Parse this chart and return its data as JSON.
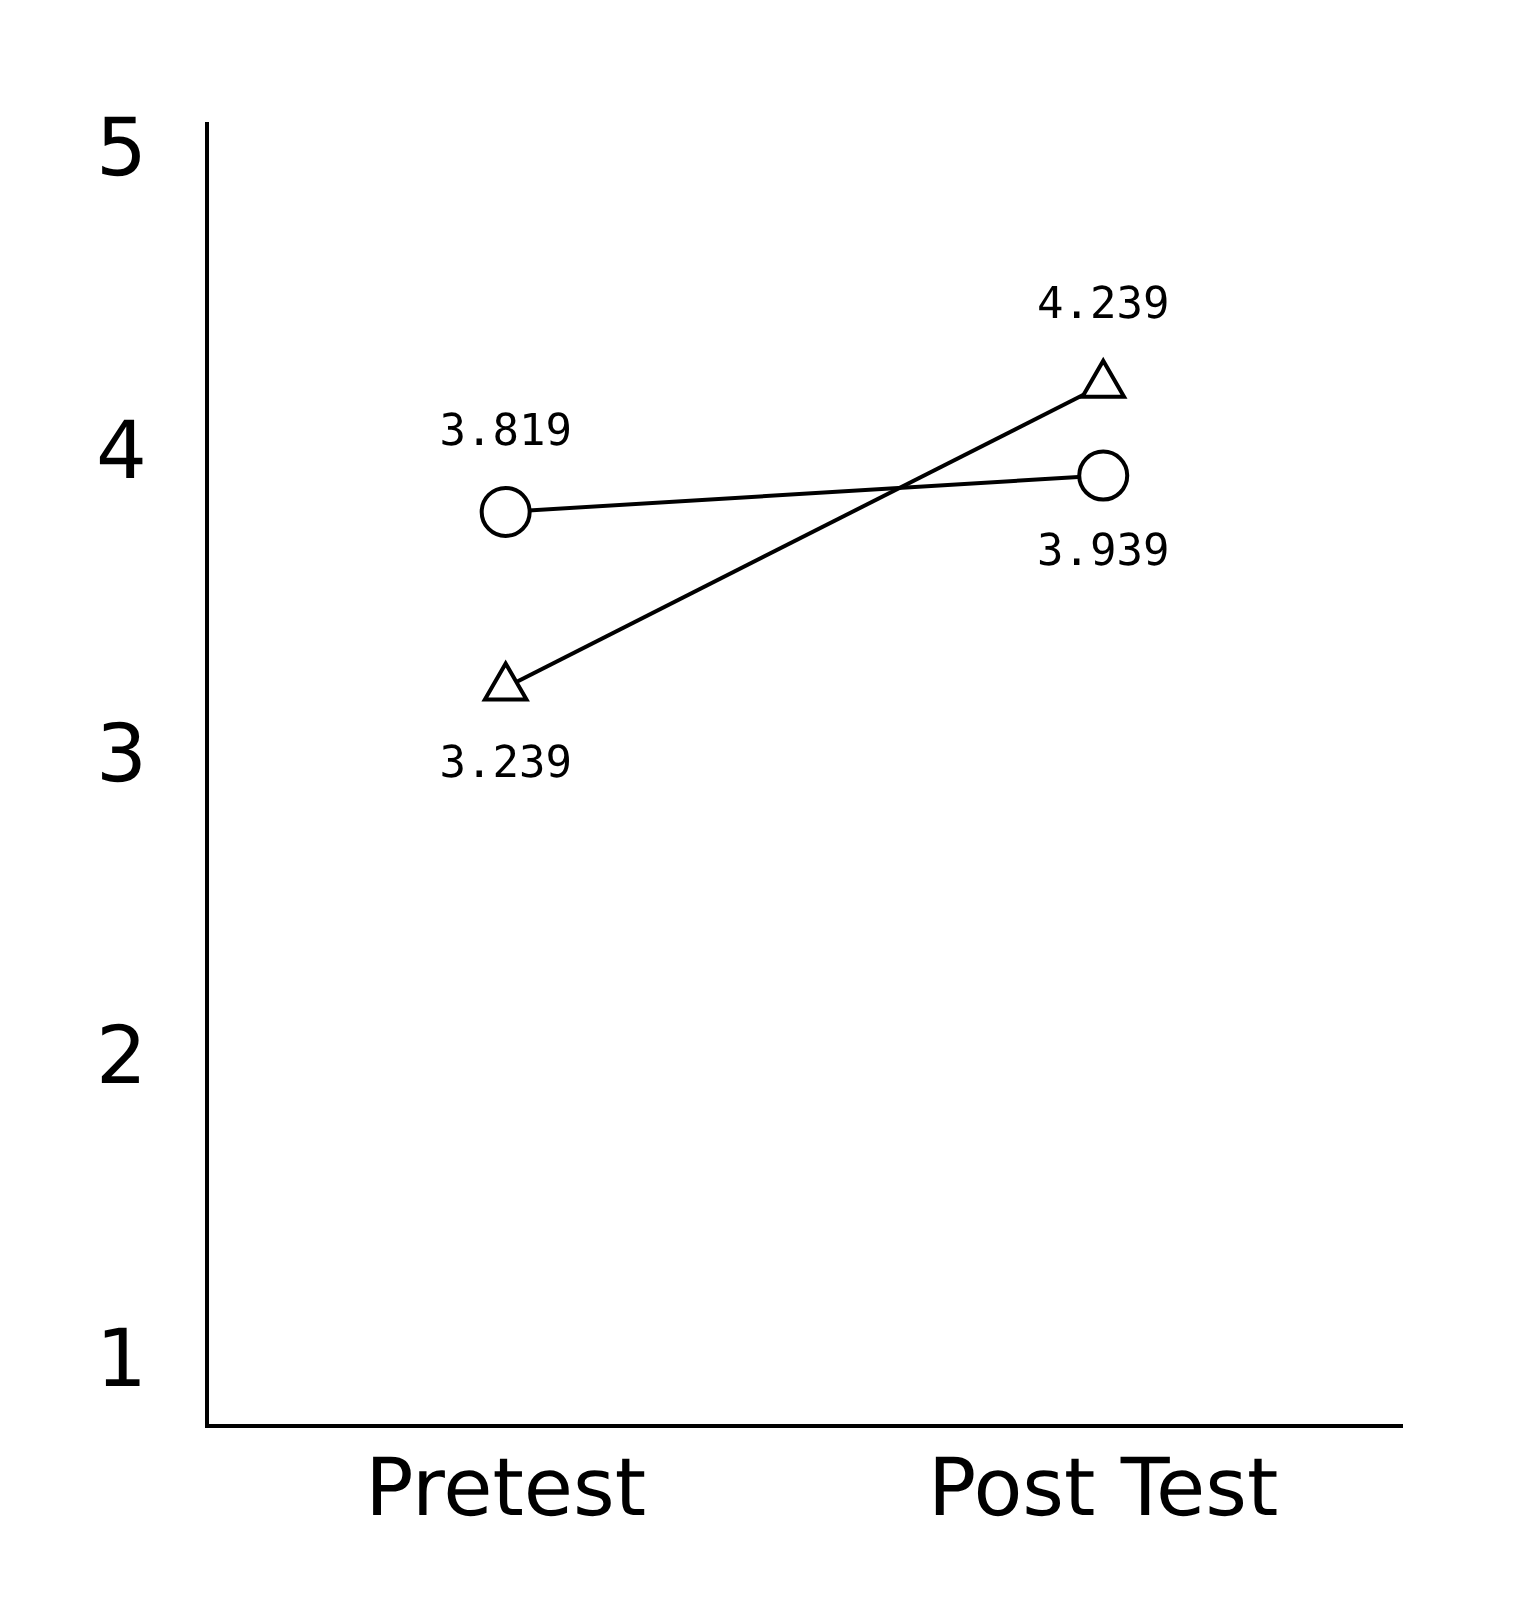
{
  "chart_data": {
    "type": "line",
    "categories": [
      "Pretest",
      "Post Test"
    ],
    "series": [
      {
        "color": "#000000",
        "marker": "circle",
        "values": [
          3.819,
          3.939
        ]
      },
      {
        "color": "#000000",
        "marker": "triangle",
        "values": [
          3.239,
          4.239
        ]
      }
    ],
    "ylim": [
      0.8,
      5.1
    ],
    "yticks": [
      1,
      2,
      3,
      4,
      5
    ],
    "data_labels": true,
    "grid": false,
    "legend": false
  }
}
